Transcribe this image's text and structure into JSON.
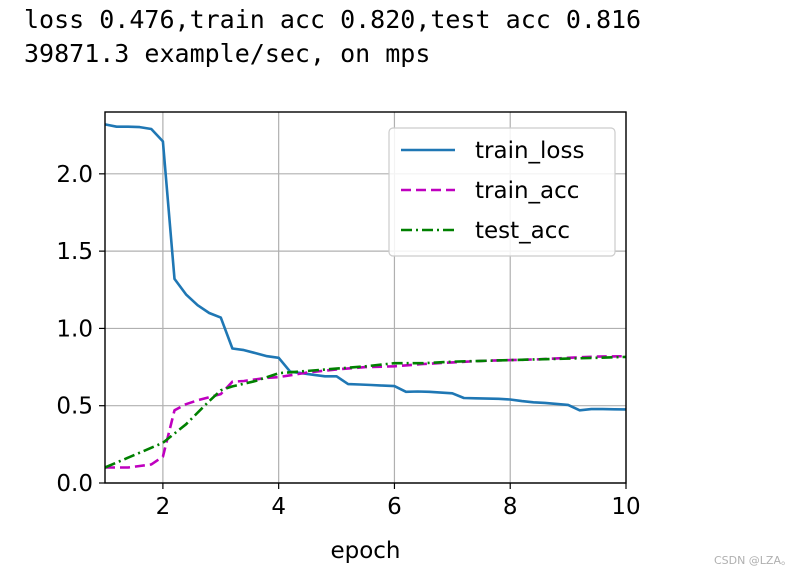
{
  "header": {
    "line1": "loss 0.476,train acc 0.820,test acc 0.816",
    "line2": "39871.3 example/sec, on mps"
  },
  "watermark": "CSDN @LZA。",
  "chart_data": {
    "type": "line",
    "title": "",
    "xlabel": "epoch",
    "ylabel": "",
    "xlim": [
      1,
      10
    ],
    "ylim": [
      0,
      2.4
    ],
    "xticks": [
      2,
      4,
      6,
      8,
      10
    ],
    "yticks": [
      0.0,
      0.5,
      1.0,
      1.5,
      2.0
    ],
    "xtick_labels": [
      "2",
      "4",
      "6",
      "8",
      "10"
    ],
    "ytick_labels": [
      "0.0",
      "0.5",
      "1.0",
      "1.5",
      "2.0"
    ],
    "grid": true,
    "legend_position": "top-right",
    "series": [
      {
        "name": "train_loss",
        "color": "#1f77b4",
        "style": "solid",
        "x": [
          1.0,
          1.2,
          1.4,
          1.6,
          1.8,
          2.0,
          2.2,
          2.4,
          2.6,
          2.8,
          3.0,
          3.2,
          3.4,
          3.6,
          3.8,
          4.0,
          4.2,
          4.4,
          4.6,
          4.8,
          5.0,
          5.2,
          5.4,
          5.6,
          5.8,
          6.0,
          6.2,
          6.4,
          6.6,
          6.8,
          7.0,
          7.2,
          7.4,
          7.6,
          7.8,
          8.0,
          8.2,
          8.4,
          8.6,
          8.8,
          9.0,
          9.2,
          9.4,
          9.6,
          9.8,
          10.0
        ],
        "y": [
          2.32,
          2.305,
          2.305,
          2.302,
          2.29,
          2.21,
          1.32,
          1.22,
          1.15,
          1.1,
          1.07,
          0.87,
          0.86,
          0.84,
          0.82,
          0.81,
          0.72,
          0.71,
          0.7,
          0.69,
          0.69,
          0.64,
          0.637,
          0.634,
          0.63,
          0.627,
          0.59,
          0.592,
          0.59,
          0.585,
          0.58,
          0.55,
          0.548,
          0.546,
          0.545,
          0.54,
          0.53,
          0.522,
          0.518,
          0.512,
          0.505,
          0.47,
          0.478,
          0.478,
          0.477,
          0.476
        ]
      },
      {
        "name": "train_acc",
        "color": "#bf00bf",
        "style": "dashed",
        "x": [
          1.0,
          1.2,
          1.4,
          1.6,
          1.8,
          2.0,
          2.2,
          2.4,
          2.6,
          2.8,
          3.0,
          3.2,
          3.4,
          3.6,
          3.8,
          4.0,
          4.5,
          5.0,
          5.5,
          6.0,
          6.5,
          7.0,
          7.5,
          8.0,
          8.5,
          9.0,
          9.5,
          10.0
        ],
        "y": [
          0.1,
          0.1,
          0.1,
          0.11,
          0.12,
          0.17,
          0.47,
          0.51,
          0.535,
          0.555,
          0.575,
          0.655,
          0.66,
          0.67,
          0.68,
          0.685,
          0.715,
          0.735,
          0.75,
          0.755,
          0.77,
          0.78,
          0.79,
          0.795,
          0.8,
          0.81,
          0.818,
          0.82
        ]
      },
      {
        "name": "test_acc",
        "color": "#008000",
        "style": "dashdot",
        "x": [
          1.0,
          1.5,
          2.0,
          2.4,
          2.8,
          3.0,
          3.2,
          3.6,
          4.0,
          4.5,
          5.0,
          5.5,
          6.0,
          6.5,
          7.0,
          7.5,
          8.0,
          8.5,
          9.0,
          9.5,
          10.0
        ],
        "y": [
          0.1,
          0.18,
          0.26,
          0.38,
          0.53,
          0.6,
          0.625,
          0.66,
          0.71,
          0.725,
          0.74,
          0.755,
          0.775,
          0.775,
          0.785,
          0.79,
          0.795,
          0.8,
          0.805,
          0.81,
          0.816
        ]
      }
    ]
  }
}
